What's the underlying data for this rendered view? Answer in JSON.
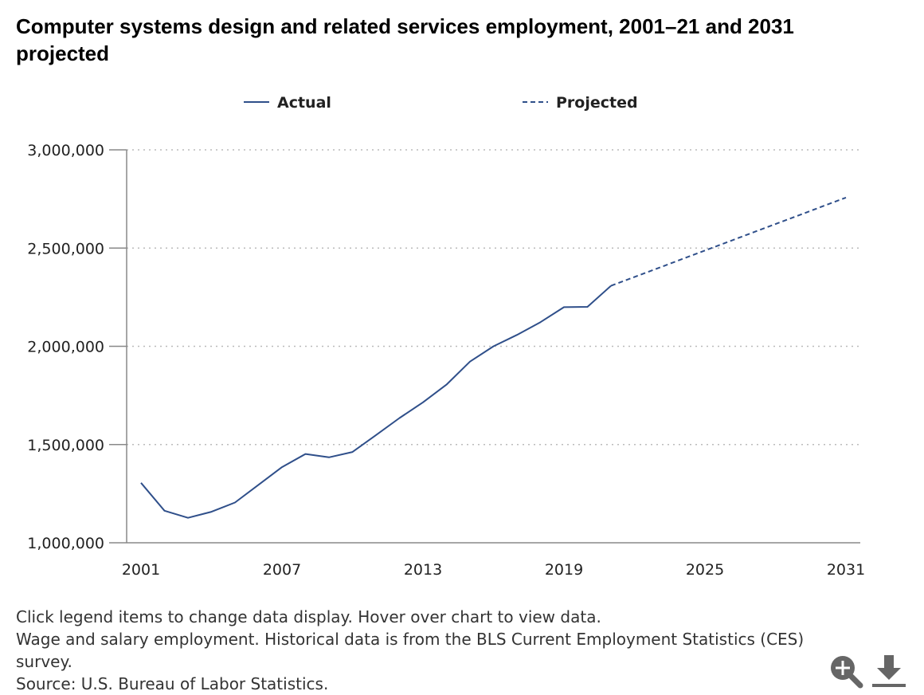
{
  "chart_data": {
    "type": "line",
    "title": "Computer systems design and related services employment, 2001–21 and 2031 projected",
    "legend": [
      "Actual",
      "Projected"
    ],
    "legend_position": "top",
    "x_ticks": [
      "2001",
      "2007",
      "2013",
      "2019",
      "2025",
      "2031"
    ],
    "y_ticks": [
      "1,000,000",
      "1,500,000",
      "2,000,000",
      "2,500,000",
      "3,000,000"
    ],
    "xlim": [
      2001,
      2031
    ],
    "ylim": [
      1000000,
      3000000
    ],
    "grid": "horizontal dotted",
    "series": [
      {
        "name": "Actual",
        "style": "solid",
        "color": "#2f4f8a",
        "x": [
          2001,
          2002,
          2003,
          2004,
          2005,
          2006,
          2007,
          2008,
          2009,
          2010,
          2011,
          2012,
          2013,
          2014,
          2015,
          2016,
          2017,
          2018,
          2019,
          2020,
          2021
        ],
        "values": [
          1305000,
          1163000,
          1127000,
          1158000,
          1205000,
          1295000,
          1385000,
          1452000,
          1435000,
          1462000,
          1548000,
          1635000,
          1715000,
          1805000,
          1922000,
          2000000,
          2058000,
          2123000,
          2199000,
          2201000,
          2308000
        ]
      },
      {
        "name": "Projected",
        "style": "dashed",
        "color": "#2f4f8a",
        "x": [
          2021,
          2031
        ],
        "values": [
          2308000,
          2757000
        ]
      }
    ]
  },
  "notes": {
    "line1": "Click legend items to change data display. Hover over chart to view data.",
    "line2": "Wage and salary employment. Historical data is from the BLS Current Employment Statistics (CES) survey.",
    "line3": "Source: U.S. Bureau of Labor Statistics."
  },
  "icons": {
    "zoom": "zoom-icon",
    "download": "download-icon"
  },
  "colors": {
    "line": "#2f4f8a",
    "grid": "#bbbbbb",
    "axis": "#888888",
    "icon": "#666666"
  }
}
